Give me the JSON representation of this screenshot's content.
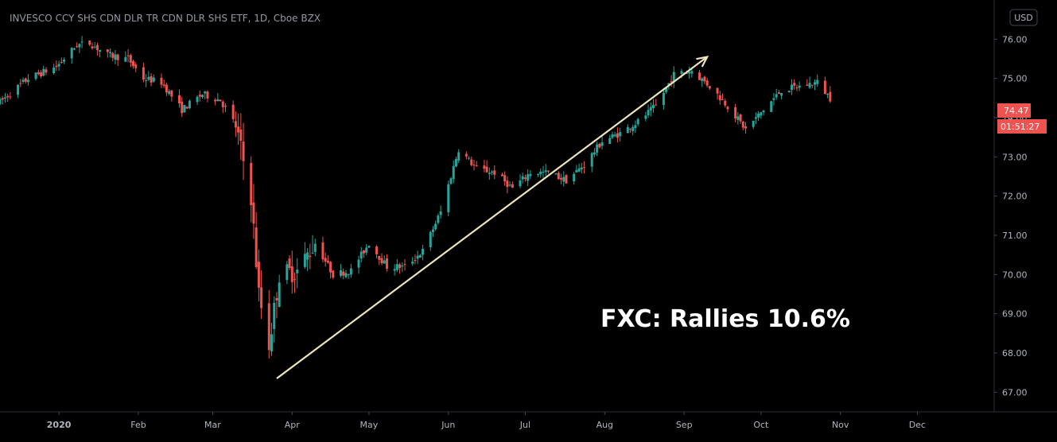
{
  "chart_data": {
    "type": "candlestick",
    "title": "INVESCO CCY SHS CDN DLR TR CDN DLR SHS ETF, 1D, Cboe BZX",
    "annotation": "FXC: Rallies 10.6%",
    "currency": "USD",
    "last_price": "74.47",
    "countdown": "01:51:27",
    "y_axis": {
      "range": [
        66.5,
        77.0
      ],
      "tick_labels": [
        "76.00",
        "75.00",
        "74.00",
        "73.00",
        "72.00",
        "71.00",
        "70.00",
        "69.00",
        "68.00",
        "67.00"
      ]
    },
    "x_axis": {
      "range": [
        "2019-12-09",
        "2020-12-31"
      ],
      "ticks": [
        {
          "label": "2020",
          "date": "2020-01-01",
          "bold": true
        },
        {
          "label": "Feb",
          "date": "2020-02-01"
        },
        {
          "label": "Mar",
          "date": "2020-03-01"
        },
        {
          "label": "Apr",
          "date": "2020-04-01"
        },
        {
          "label": "May",
          "date": "2020-05-01"
        },
        {
          "label": "Jun",
          "date": "2020-06-01"
        },
        {
          "label": "Jul",
          "date": "2020-07-01"
        },
        {
          "label": "Aug",
          "date": "2020-08-01"
        },
        {
          "label": "Sep",
          "date": "2020-09-01"
        },
        {
          "label": "Oct",
          "date": "2020-10-01"
        },
        {
          "label": "Nov",
          "date": "2020-11-01"
        },
        {
          "label": "Dec",
          "date": "2020-12-01"
        }
      ]
    },
    "trend_arrow": {
      "from": {
        "date": "2020-03-26",
        "price": 67.35
      },
      "to": {
        "date": "2020-09-10",
        "price": 75.55
      }
    },
    "close_path": [
      [
        "2019-12-09",
        74.4
      ],
      [
        "2019-12-20",
        75.0
      ],
      [
        "2019-12-31",
        75.3
      ],
      [
        "2020-01-08",
        75.85
      ],
      [
        "2020-01-13",
        75.9
      ],
      [
        "2020-01-20",
        75.6
      ],
      [
        "2020-01-28",
        75.5
      ],
      [
        "2020-02-03",
        75.0
      ],
      [
        "2020-02-10",
        74.9
      ],
      [
        "2020-02-18",
        74.2
      ],
      [
        "2020-02-26",
        74.6
      ],
      [
        "2020-03-04",
        74.45
      ],
      [
        "2020-03-10",
        73.8
      ],
      [
        "2020-03-16",
        72.0
      ],
      [
        "2020-03-19",
        69.5
      ],
      [
        "2020-03-23",
        68.2
      ],
      [
        "2020-03-27",
        70.0
      ],
      [
        "2020-04-03",
        70.1
      ],
      [
        "2020-04-10",
        70.8
      ],
      [
        "2020-04-17",
        70.0
      ],
      [
        "2020-04-24",
        70.1
      ],
      [
        "2020-05-01",
        70.8
      ],
      [
        "2020-05-08",
        70.2
      ],
      [
        "2020-05-15",
        70.2
      ],
      [
        "2020-05-22",
        70.6
      ],
      [
        "2020-05-29",
        71.6
      ],
      [
        "2020-06-05",
        73.2
      ],
      [
        "2020-06-12",
        72.7
      ],
      [
        "2020-06-19",
        72.6
      ],
      [
        "2020-06-26",
        72.2
      ],
      [
        "2020-07-03",
        72.6
      ],
      [
        "2020-07-10",
        72.6
      ],
      [
        "2020-07-17",
        72.4
      ],
      [
        "2020-07-24",
        72.8
      ],
      [
        "2020-07-31",
        73.4
      ],
      [
        "2020-08-07",
        73.6
      ],
      [
        "2020-08-14",
        73.9
      ],
      [
        "2020-08-21",
        74.3
      ],
      [
        "2020-08-28",
        75.1
      ],
      [
        "2020-09-04",
        75.2
      ],
      [
        "2020-09-11",
        74.8
      ],
      [
        "2020-09-18",
        74.3
      ],
      [
        "2020-09-25",
        73.7
      ],
      [
        "2020-10-02",
        74.2
      ],
      [
        "2020-10-09",
        74.7
      ],
      [
        "2020-10-16",
        74.8
      ],
      [
        "2020-10-23",
        74.9
      ],
      [
        "2020-10-28",
        74.5
      ]
    ],
    "grid": false
  }
}
